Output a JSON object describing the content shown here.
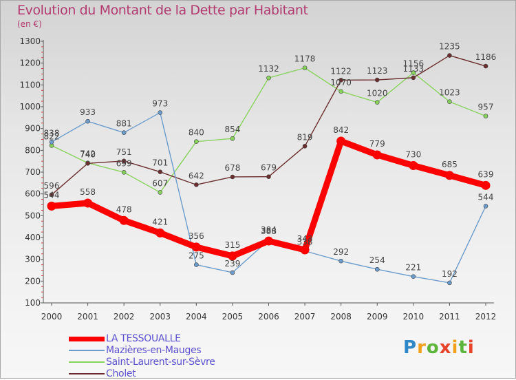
{
  "title": "Evolution du Montant de la Dette par Habitant",
  "subtitle": "(en €)",
  "logo_text": "Proxiti",
  "chart_data": {
    "type": "line",
    "x": [
      "2000",
      "2001",
      "2002",
      "2003",
      "2004",
      "2005",
      "2006",
      "2007",
      "2008",
      "2009",
      "2010",
      "2011",
      "2012"
    ],
    "ylim": [
      100,
      1300
    ],
    "yticks": [
      100,
      200,
      300,
      400,
      500,
      600,
      700,
      800,
      900,
      1000,
      1100,
      1200,
      1300
    ],
    "grid": false,
    "legend_placement": "bottom-left",
    "series": [
      {
        "name": "LA TESSOUALLE",
        "color": "#ff0000",
        "values": [
          544,
          558,
          478,
          421,
          356,
          315,
          384,
          343,
          842,
          779,
          730,
          685,
          639
        ]
      },
      {
        "name": "Mazières-en-Mauges",
        "color": "#6b9ccc",
        "values": [
          838,
          933,
          881,
          973,
          275,
          239,
          388,
          338,
          292,
          254,
          221,
          192,
          544
        ]
      },
      {
        "name": "Saint-Laurent-sur-Sèvre",
        "color": "#88d35c",
        "values": [
          822,
          742,
          699,
          607,
          840,
          854,
          1132,
          1178,
          1070,
          1020,
          1156,
          1023,
          957
        ]
      },
      {
        "name": "Cholet",
        "color": "#6b2d2d",
        "values": [
          596,
          740,
          751,
          701,
          642,
          678,
          679,
          819,
          1122,
          1123,
          1133,
          1235,
          1186
        ]
      }
    ]
  }
}
